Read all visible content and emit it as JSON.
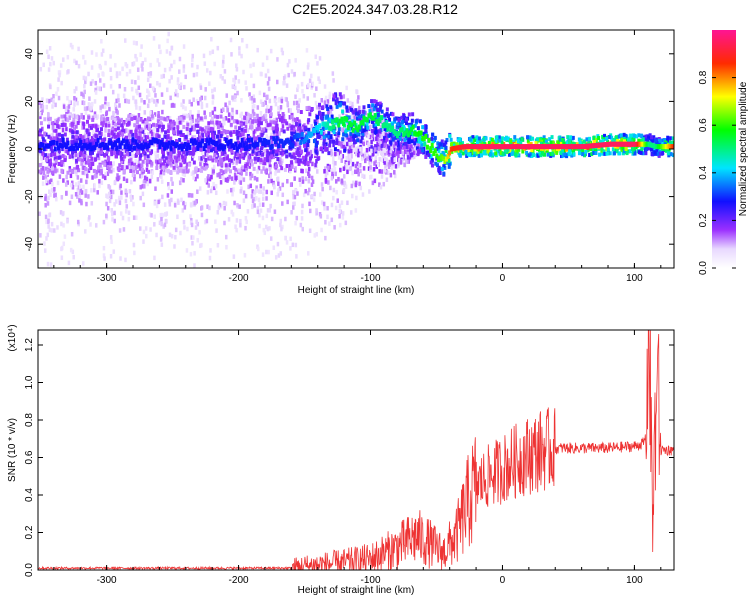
{
  "title": "C2E5.2024.347.03.28.R12",
  "chart_data": [
    {
      "type": "heatmap",
      "xlabel": "Height of straight line (km)",
      "ylabel": "Frequency (Hz)",
      "xlim": [
        -352,
        130
      ],
      "ylim": [
        -50,
        50
      ],
      "xticks": [
        -300,
        -200,
        -100,
        0,
        100
      ],
      "yticks": [
        -40,
        -20,
        0,
        20,
        40
      ],
      "colorbar": {
        "label": "Normalized spectral amplitude",
        "range": [
          0,
          1
        ],
        "ticks": [
          "0.0",
          "0.2",
          "0.4",
          "0.6",
          "0.8"
        ],
        "colors": [
          "#ffffff",
          "#9b30ff",
          "#0000ff",
          "#00e5ff",
          "#00ff00",
          "#ffff00",
          "#ff0000",
          "#ff00aa"
        ]
      },
      "ridge": {
        "x": [
          -350,
          -300,
          -250,
          -200,
          -160,
          -140,
          -125,
          -110,
          -100,
          -90,
          -80,
          -70,
          -60,
          -50,
          -45,
          -40,
          -30,
          -20,
          0,
          30,
          60,
          80,
          100,
          110,
          115,
          130
        ],
        "freq": [
          2,
          2,
          2,
          2,
          3,
          8,
          12,
          9,
          14,
          11,
          7,
          8,
          4,
          -3,
          -4,
          0,
          1,
          1,
          1,
          1,
          1,
          2,
          2,
          2,
          1,
          1
        ],
        "amplitude": [
          0.28,
          0.28,
          0.28,
          0.28,
          0.3,
          0.42,
          0.55,
          0.55,
          0.55,
          0.5,
          0.5,
          0.55,
          0.6,
          0.6,
          0.65,
          0.85,
          0.92,
          0.95,
          0.95,
          0.95,
          0.95,
          0.95,
          0.95,
          0.5,
          0.5,
          0.9
        ]
      }
    },
    {
      "type": "line",
      "xlabel": "Height of straight line (km)",
      "ylabel": "SNR (10 * v/v)",
      "multiplier": "(x10⁴)",
      "xlim": [
        -352,
        130
      ],
      "ylim": [
        0,
        1.28
      ],
      "xticks": [
        -300,
        -200,
        -100,
        0,
        100
      ],
      "yticks": [
        "0.0",
        "0.2",
        "0.4",
        "0.6",
        "0.8",
        "1.0",
        "1.2"
      ],
      "color": "#ee3333",
      "x": [
        -350,
        -250,
        -160,
        -150,
        -120,
        -100,
        -80,
        -65,
        -55,
        -45,
        -35,
        -25,
        -20,
        -10,
        0,
        15,
        30,
        45,
        60,
        80,
        100,
        108,
        111,
        114,
        117,
        120,
        130
      ],
      "y": [
        0.01,
        0.01,
        0.01,
        0.02,
        0.04,
        0.06,
        0.12,
        0.18,
        0.14,
        0.09,
        0.18,
        0.38,
        0.45,
        0.5,
        0.54,
        0.6,
        0.64,
        0.65,
        0.65,
        0.65,
        0.66,
        0.68,
        1.25,
        0.25,
        1.05,
        0.64,
        0.64
      ]
    }
  ]
}
